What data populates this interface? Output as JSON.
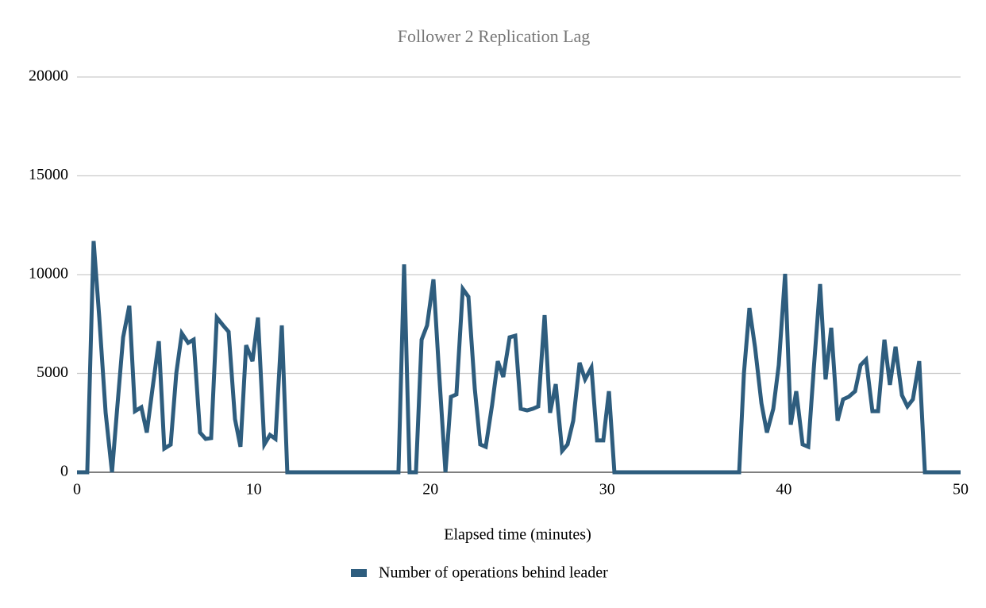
{
  "chart_data": {
    "type": "line",
    "title": "Follower 2 Replication Lag",
    "x_label": "Elapsed time (minutes)",
    "x": [
      0,
      0.58,
      0.94,
      1.26,
      1.62,
      1.98,
      2.29,
      2.61,
      2.96,
      3.28,
      3.64,
      3.95,
      4.27,
      4.63,
      4.94,
      5.3,
      5.62,
      5.93,
      6.29,
      6.6,
      6.96,
      7.28,
      7.59,
      7.91,
      8.27,
      8.58,
      8.94,
      9.25,
      9.57,
      9.93,
      10.24,
      10.6,
      10.92,
      11.23,
      11.59,
      11.9,
      18.19,
      18.51,
      18.82,
      19.18,
      19.5,
      19.81,
      20.17,
      20.49,
      20.85,
      21.16,
      21.47,
      21.83,
      22.15,
      22.51,
      22.82,
      23.13,
      23.49,
      23.81,
      24.12,
      24.48,
      24.8,
      25.11,
      25.47,
      25.79,
      26.1,
      26.46,
      26.77,
      27.09,
      27.45,
      27.76,
      28.08,
      28.44,
      28.75,
      29.11,
      29.43,
      29.78,
      30.1,
      30.41,
      37.47,
      37.74,
      38.05,
      38.37,
      38.73,
      39.04,
      39.4,
      39.71,
      40.07,
      40.39,
      40.7,
      41.06,
      41.38,
      41.69,
      42.05,
      42.36,
      42.68,
      43.04,
      43.35,
      43.67,
      44.03,
      44.34,
      44.65,
      45.01,
      45.33,
      45.69,
      46.0,
      46.32,
      46.68,
      46.99,
      47.3,
      47.66,
      47.98,
      50
    ],
    "series": [
      {
        "name": "Number of operations behind leader",
        "color": "#2e5d7e",
        "values": [
          0,
          0,
          11700,
          7830,
          3010,
          0,
          3410,
          6830,
          8430,
          3090,
          3290,
          2010,
          4220,
          6630,
          1200,
          1400,
          5020,
          7030,
          6550,
          6710,
          2010,
          1690,
          1730,
          7830,
          7430,
          7110,
          2690,
          1290,
          6430,
          5620,
          7830,
          1410,
          1890,
          1690,
          7430,
          0,
          0,
          10520,
          0,
          0,
          6710,
          7430,
          9760,
          5020,
          0,
          3820,
          3940,
          9280,
          8880,
          4220,
          1410,
          1290,
          3410,
          5620,
          4820,
          6830,
          6910,
          3210,
          3130,
          3210,
          3330,
          7950,
          3010,
          4460,
          1080,
          1410,
          2610,
          5540,
          4700,
          5300,
          1610,
          1610,
          4100,
          0,
          0,
          5020,
          8310,
          6310,
          3490,
          2010,
          3210,
          5420,
          10040,
          2410,
          4100,
          1410,
          1290,
          5220,
          9520,
          4700,
          7310,
          2610,
          3690,
          3820,
          4100,
          5420,
          5700,
          3090,
          3090,
          6710,
          4420,
          6350,
          3900,
          3330,
          3690,
          5620,
          0,
          0
        ]
      }
    ],
    "xlim": [
      0,
      50
    ],
    "xticks": [
      0,
      10,
      20,
      30,
      40,
      50
    ],
    "ylim": [
      0,
      20000
    ],
    "yticks": [
      0,
      5000,
      10000,
      15000,
      20000
    ],
    "grid": true,
    "legend": "bottom"
  }
}
